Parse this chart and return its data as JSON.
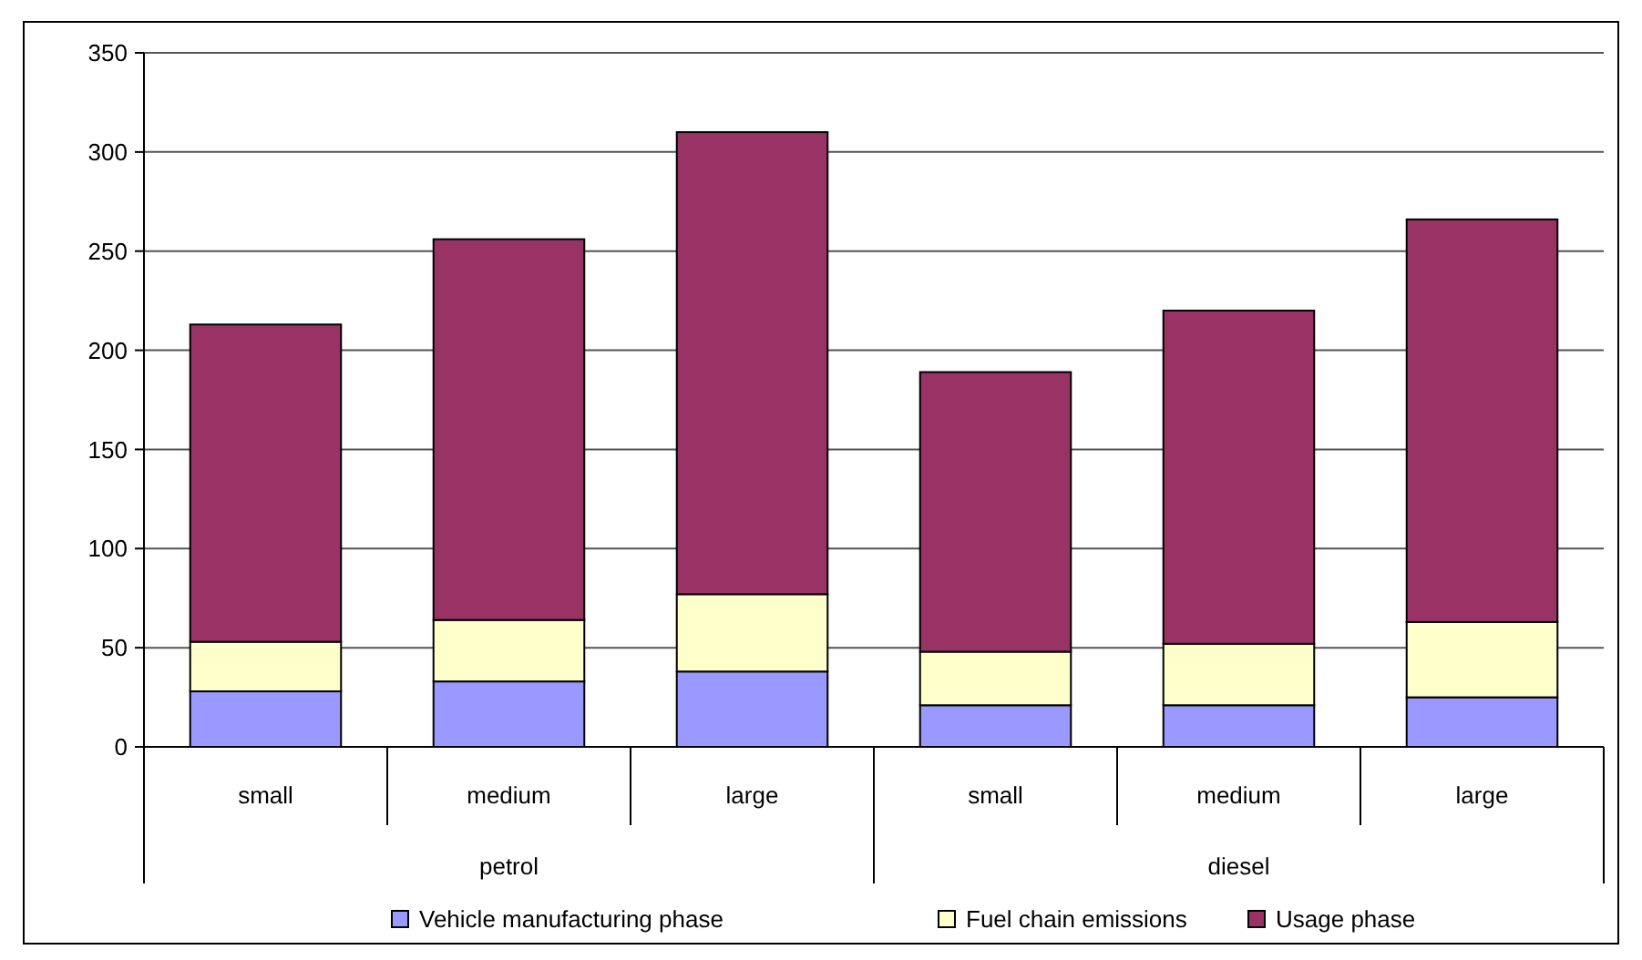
{
  "chart_data": {
    "type": "bar",
    "stacked": true,
    "categories": [
      "small",
      "medium",
      "large",
      "small",
      "medium",
      "large"
    ],
    "series": [
      {
        "name": "Vehicle manufacturing phase",
        "color": "#9999ff",
        "values": [
          28,
          33,
          38,
          21,
          21,
          25
        ]
      },
      {
        "name": "Fuel chain emissions",
        "color": "#ffffcc",
        "values": [
          25,
          31,
          39,
          27,
          31,
          38
        ]
      },
      {
        "name": "Usage phase",
        "color": "#993366",
        "values": [
          160,
          192,
          233,
          141,
          168,
          203
        ]
      }
    ],
    "ylim": [
      0,
      350
    ],
    "yticks": [
      0,
      50,
      100,
      150,
      200,
      250,
      300,
      350
    ],
    "grid": "y",
    "legend": "bottom",
    "annotations": [
      "petrol",
      "diesel"
    ]
  }
}
